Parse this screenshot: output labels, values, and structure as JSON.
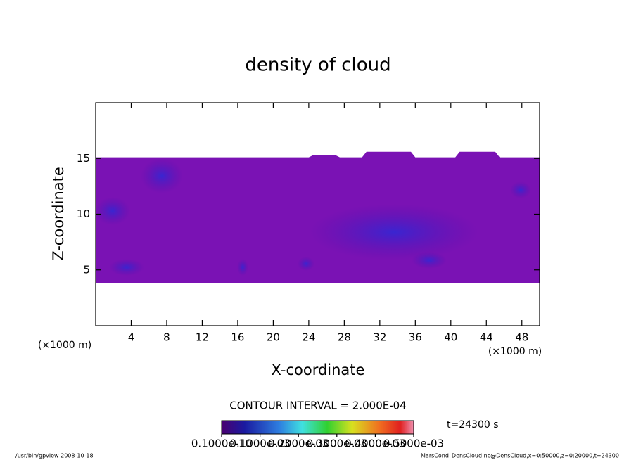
{
  "chart_data": {
    "type": "contour",
    "title": "density of cloud",
    "x_label": "X-coordinate",
    "y_label": "Z-coordinate",
    "x_unit": "(×1000 m)",
    "y_unit": "(×1000 m)",
    "xlim": [
      0,
      50
    ],
    "xticks": [
      4,
      8,
      12,
      16,
      20,
      24,
      28,
      32,
      36,
      40,
      44,
      48
    ],
    "ylim": [
      0,
      20
    ],
    "yticks": [
      5,
      10,
      15
    ],
    "color": "#7a12b4",
    "x": [
      0,
      24,
      24.5,
      27,
      27.5,
      30,
      30.5,
      35.5,
      36,
      40.5,
      41,
      45,
      45.5,
      50
    ],
    "top": [
      15.1,
      15.1,
      15.3,
      15.3,
      15.1,
      15.1,
      15.6,
      15.6,
      15.1,
      15.1,
      15.6,
      15.6,
      15.1,
      15.1
    ],
    "base": [
      3.8,
      3.8,
      3.8,
      3.8,
      3.8,
      3.8,
      3.8,
      3.8,
      3.8,
      3.8,
      3.8,
      3.8,
      3.8,
      3.8
    ],
    "contour_interval": "CONTOUR INTERVAL = 2.000E-04",
    "time": "t=24300 s",
    "clim": [
      0,
      0.0005
    ],
    "cticks": [
      {
        "value": 1e-11,
        "label": "0.1000e-10"
      },
      {
        "value": 0.0001,
        "label": "0.1000e-03"
      },
      {
        "value": 0.0002,
        "label": "0.2000e-03"
      },
      {
        "value": 0.0003,
        "label": "0.3000e-03"
      },
      {
        "value": 0.0004,
        "label": "0.4000e-03"
      },
      {
        "value": 0.0005,
        "label": "0.5000e-03"
      }
    ],
    "footer_left": "/usr/bin/gpview   2008-10-18",
    "footer_right": "MarsCond_DensCloud.nc@DensCloud,x=0:50000,z=0:20000,t=24300"
  }
}
